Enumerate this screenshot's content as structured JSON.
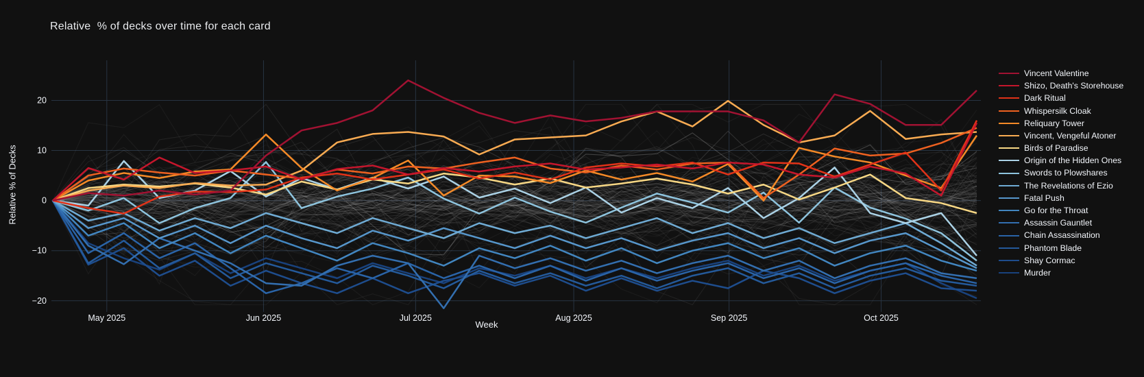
{
  "title": "Relative  % of decks over time for each card",
  "x_axis": {
    "label": "Week",
    "ticks": [
      {
        "label": "May 2025",
        "week": 1.52
      },
      {
        "label": "Jun 2025",
        "week": 5.93
      },
      {
        "label": "Jul 2025",
        "week": 10.21
      },
      {
        "label": "Aug 2025",
        "week": 14.66
      },
      {
        "label": "Sep 2025",
        "week": 19.03
      },
      {
        "label": "Oct 2025",
        "week": 23.31
      }
    ]
  },
  "y_axis": {
    "label": "Relative % of Decks",
    "ticks": [
      {
        "label": "20",
        "value": 20
      },
      {
        "label": "10",
        "value": 10
      },
      {
        "label": "0",
        "value": 0
      },
      {
        "label": "−10",
        "value": -10
      },
      {
        "label": "−20",
        "value": -20
      }
    ]
  },
  "chart_data": {
    "type": "line",
    "x_unit": "weekly points, late Apr 2025 through late Oct 2025",
    "n_points": 27,
    "ylim": [
      -21.4,
      28.0
    ],
    "grid": true,
    "legend_position": "right",
    "zero_line": {
      "style": "dashed",
      "color": "#40444a"
    },
    "background_series": {
      "count": 110,
      "seed": 7,
      "color": "#c8c8c8",
      "description": "unlabeled faint gray context lines, all starting at 0"
    },
    "series": [
      {
        "name": "Vincent Valentine",
        "color": "#a11232",
        "values": [
          0,
          1.5,
          1,
          2,
          1.2,
          2,
          9,
          14,
          15.5,
          18,
          24,
          20.5,
          17.5,
          15.5,
          17,
          15.8,
          16.5,
          17.8,
          17.8,
          17.8,
          16,
          11.6,
          21.2,
          19.3,
          15.1,
          15.1,
          22
        ]
      },
      {
        "name": "Shizo, Death's Storehouse",
        "color": "#c5162c",
        "values": [
          0,
          6.5,
          4.2,
          8.6,
          5.5,
          6,
          6.8,
          4.2,
          6.3,
          7,
          5.2,
          6.5,
          5.8,
          6.8,
          7.4,
          6.2,
          6.6,
          7.2,
          6.4,
          7.6,
          7.2,
          5.2,
          4.6,
          6.8,
          5.4,
          1,
          15.5
        ]
      },
      {
        "name": "Dark Ritual",
        "color": "#e13218",
        "values": [
          0,
          -1.5,
          -2.6,
          0.8,
          1.8,
          1.7,
          2.2,
          4.6,
          5.4,
          4.2,
          5.2,
          6.2,
          4.4,
          5.6,
          4.2,
          6.6,
          7.4,
          6.8,
          7.6,
          5.2,
          7.6,
          7.4,
          4.8,
          7.2,
          9.6,
          2,
          16
        ]
      },
      {
        "name": "Whispersilk Cloak",
        "color": "#ee6120",
        "values": [
          0,
          5,
          6.4,
          5.6,
          5,
          6,
          5.2,
          4.4,
          6.2,
          5.4,
          6.8,
          6.4,
          7.6,
          8.6,
          6.4,
          5.6,
          7,
          6.2,
          7.4,
          7.6,
          0.5,
          5.2,
          10.4,
          9,
          9.4,
          11.5,
          14.5
        ]
      },
      {
        "name": "Reliquary Tower",
        "color": "#f58a27",
        "values": [
          0,
          4,
          5.5,
          4.5,
          5.8,
          6.2,
          13.2,
          6.5,
          2,
          4.5,
          8,
          1,
          5,
          4.8,
          3.5,
          6,
          4.2,
          5.5,
          3.8,
          7.3,
          0,
          10.5,
          8.8,
          7.6,
          5,
          2.5,
          13
        ]
      },
      {
        "name": "Vincent, Vengeful Atoner",
        "color": "#f9ab52",
        "values": [
          0,
          2,
          3,
          2.5,
          3.5,
          3,
          3.2,
          6,
          11.6,
          13.3,
          13.7,
          12.8,
          9.2,
          12.2,
          12.6,
          13,
          15.8,
          17.8,
          14.8,
          19.9,
          15.1,
          11.6,
          13,
          17.9,
          12.3,
          13.2,
          13.7
        ]
      },
      {
        "name": "Birds of Paradise",
        "color": "#f8d885",
        "values": [
          0,
          2.5,
          3.2,
          2.8,
          3.4,
          2.6,
          1.2,
          3.8,
          2.2,
          4.2,
          3.4,
          5.4,
          4.6,
          3.2,
          4.4,
          2.6,
          3.4,
          4.4,
          3.2,
          1.4,
          3.2,
          0.2,
          2.6,
          5.2,
          0.5,
          -0.5,
          -2.5
        ]
      },
      {
        "name": "Origin of the Hidden Ones",
        "color": "#abd2e6",
        "values": [
          0,
          -1,
          7.9,
          0.5,
          2,
          5.9,
          0.8,
          4.5,
          2.2,
          4.6,
          2.4,
          4.8,
          0.6,
          2.4,
          -0.5,
          2.6,
          -2.4,
          0.5,
          -1.5,
          2.5,
          -3.5,
          0.5,
          6.6,
          -2.5,
          -4.5,
          -2.5,
          -11
        ]
      },
      {
        "name": "Swords to Plowshares",
        "color": "#8ec4de",
        "values": [
          0,
          -2,
          0.5,
          -4.5,
          -1.5,
          0.5,
          7.7,
          -1.5,
          0.8,
          2.4,
          4.6,
          0.4,
          -2.6,
          0.6,
          -2.2,
          -4.4,
          -1.4,
          1.4,
          -0.4,
          -2.4,
          1.6,
          -4.4,
          2.6,
          -1.4,
          -3.6,
          -6.5,
          -12
        ]
      },
      {
        "name": "The Revelations of Ezio",
        "color": "#6fabd4",
        "values": [
          0,
          -4,
          -2.5,
          -6,
          -3.5,
          -5.5,
          -2.5,
          -4.5,
          -6.5,
          -3.5,
          -5.5,
          -7.5,
          -4.5,
          -6.5,
          -5,
          -7.5,
          -5.5,
          -3.5,
          -6.5,
          -4.5,
          -7.5,
          -5.5,
          -8.5,
          -6.5,
          -4.5,
          -8.5,
          -13
        ]
      },
      {
        "name": "Fatal Push",
        "color": "#5797cc",
        "values": [
          0,
          -5.5,
          -3.5,
          -7.5,
          -5,
          -8.5,
          -5,
          -7.5,
          -9.5,
          -6,
          -8,
          -5.5,
          -7.5,
          -9.5,
          -7,
          -9.5,
          -7.5,
          -10,
          -8,
          -6.5,
          -9.5,
          -7.5,
          -10.5,
          -8,
          -6.5,
          -10,
          -13.5
        ]
      },
      {
        "name": "Go for the Throat",
        "color": "#4286c0",
        "values": [
          0,
          -7,
          -4.5,
          -9.5,
          -6.5,
          -10.5,
          -7,
          -9.5,
          -12,
          -8.5,
          -10.5,
          -13,
          -9.5,
          -11.5,
          -9,
          -12,
          -9.5,
          -12.5,
          -10,
          -8.5,
          -11.5,
          -9.5,
          -13,
          -10.5,
          -9,
          -12,
          -14
        ]
      },
      {
        "name": "Assassin Gauntlet",
        "color": "#336fb0",
        "values": [
          0,
          -9,
          -12.7,
          -7.5,
          -10,
          -12.5,
          -16.5,
          -17,
          -13,
          -11,
          -12.5,
          -21.5,
          -11,
          -13.5,
          -11.5,
          -14,
          -12,
          -14.5,
          -12.5,
          -11,
          -14,
          -12,
          -15.5,
          -13,
          -11.5,
          -14.5,
          -15.5
        ]
      },
      {
        "name": "Chain Assassination",
        "color": "#2a64a8",
        "values": [
          0,
          -10.5,
          -6.5,
          -11.5,
          -8.5,
          -13.5,
          -18.5,
          -16.5,
          -13.5,
          -15.5,
          -12.5,
          -15.5,
          -13,
          -15.5,
          -13,
          -16,
          -13.5,
          -16,
          -14,
          -12.5,
          -15.5,
          -13.5,
          -16.5,
          -14,
          -12.5,
          -15,
          -16.5
        ]
      },
      {
        "name": "Phantom Blade",
        "color": "#245a9b",
        "values": [
          0,
          -12.5,
          -8,
          -13.5,
          -10.5,
          -15.5,
          -12.5,
          -14.5,
          -16.5,
          -13,
          -15,
          -17.5,
          -14,
          -16.5,
          -14.5,
          -17,
          -15,
          -17.5,
          -15,
          -13.5,
          -16.5,
          -14.5,
          -17.5,
          -15,
          -13.5,
          -16,
          -17
        ]
      },
      {
        "name": "Shay Cormac",
        "color": "#1e4d8d",
        "values": [
          0,
          -12.8,
          -9.5,
          -15,
          -12,
          -17,
          -14,
          -16.5,
          -18.5,
          -15.5,
          -18.5,
          -16,
          -14.5,
          -17,
          -15,
          -18,
          -15.5,
          -18,
          -16,
          -17.5,
          -14,
          -15.5,
          -18.5,
          -16,
          -14.5,
          -17.5,
          -18
        ]
      },
      {
        "name": "Murder",
        "color": "#19427d",
        "values": [
          0,
          -8.5,
          -11.5,
          -13.8,
          -10.5,
          -14.5,
          -11.5,
          -13.5,
          -15.5,
          -12.5,
          -14.5,
          -16.5,
          -13.5,
          -15,
          -13,
          -15.5,
          -13.5,
          -15.5,
          -13.5,
          -12,
          -15,
          -13,
          -16,
          -14,
          -12.5,
          -16.5,
          -19.5
        ]
      }
    ]
  },
  "colors": {
    "background": "#111111",
    "grid": "#283442",
    "tick_text": "#f2f5fa",
    "title_text": "#e8eaed"
  }
}
